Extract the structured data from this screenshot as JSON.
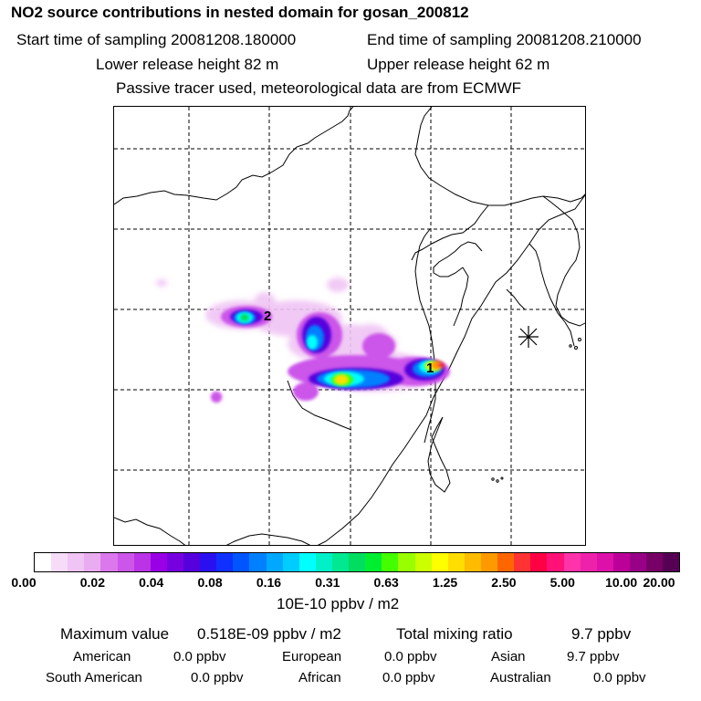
{
  "header": {
    "title": "NO2 source contributions in nested domain for gosan_200812",
    "start_time": "Start time of sampling 20081208.180000",
    "end_time": "End time of sampling 20081208.210000",
    "lower_release": "Lower release height   82 m",
    "upper_release": "Upper release height   62 m",
    "tracer_note": "Passive tracer used, meteorological data are from ECMWF"
  },
  "map": {
    "source_labels": [
      "2",
      "1"
    ],
    "receptor_marker": "gosan"
  },
  "colorbar": {
    "colors": [
      "#ffffff",
      "#f6dcf8",
      "#f0c4f4",
      "#e9acf0",
      "#dc78ee",
      "#cc55ea",
      "#bb33e6",
      "#9900e5",
      "#7700e0",
      "#5500dd",
      "#2a10f0",
      "#1030ff",
      "#0055ff",
      "#0080ff",
      "#00a8ff",
      "#00ccff",
      "#00ffff",
      "#00f0c8",
      "#00e890",
      "#00dd60",
      "#00ee30",
      "#44ff00",
      "#99ff00",
      "#ccff00",
      "#ffff00",
      "#ffdd00",
      "#ffbb00",
      "#ff9900",
      "#ff6600",
      "#ff3333",
      "#ff0044",
      "#ff1177",
      "#ff33aa",
      "#ee22aa",
      "#dd11aa",
      "#bb0099",
      "#990088",
      "#770066",
      "#550055"
    ],
    "ticks": [
      "0.00",
      "0.02",
      "0.04",
      "0.08",
      "0.16",
      "0.31",
      "0.63",
      "1.25",
      "2.50",
      "5.00",
      "10.00",
      "20.00"
    ],
    "unit": "10E-10 ppbv / m2"
  },
  "summary": {
    "max_label": "Maximum value",
    "max_value": "0.518E-09 ppbv / m2",
    "total_label": "Total mixing ratio",
    "total_value": "9.7 ppbv",
    "regions": [
      {
        "name": "American",
        "value": "0.0 ppbv"
      },
      {
        "name": "European",
        "value": "0.0 ppbv"
      },
      {
        "name": "Asian",
        "value": "9.7 ppbv"
      },
      {
        "name": "South American",
        "value": "0.0 ppbv"
      },
      {
        "name": "African",
        "value": "0.0 ppbv"
      },
      {
        "name": "Australian",
        "value": "0.0 ppbv"
      }
    ]
  }
}
